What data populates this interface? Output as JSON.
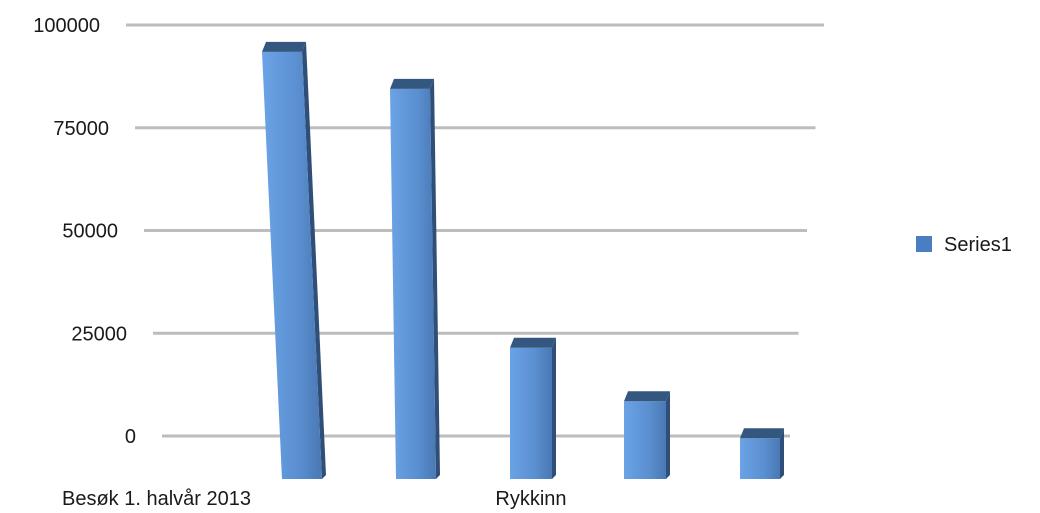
{
  "chart_data": {
    "type": "bar",
    "style": "3d",
    "categories": [
      "Besøk 1. halvår 2013",
      "",
      "Rykkinn",
      "",
      ""
    ],
    "series": [
      {
        "name": "Series1",
        "values": [
          92000,
          83000,
          20000,
          7000,
          -2000
        ],
        "color": "#4f84c6"
      }
    ],
    "yticks": [
      100000,
      75000,
      50000,
      25000,
      0
    ],
    "ylim": [
      -10000,
      100000
    ],
    "grid": true,
    "legend": "right"
  },
  "colors": {
    "bar_front": "#5a8fd0",
    "bar_top": "#34577f",
    "bar_side": "#2f4f78",
    "grid": "#bdbdbd",
    "legend_swatch": "#4a7ec2"
  }
}
